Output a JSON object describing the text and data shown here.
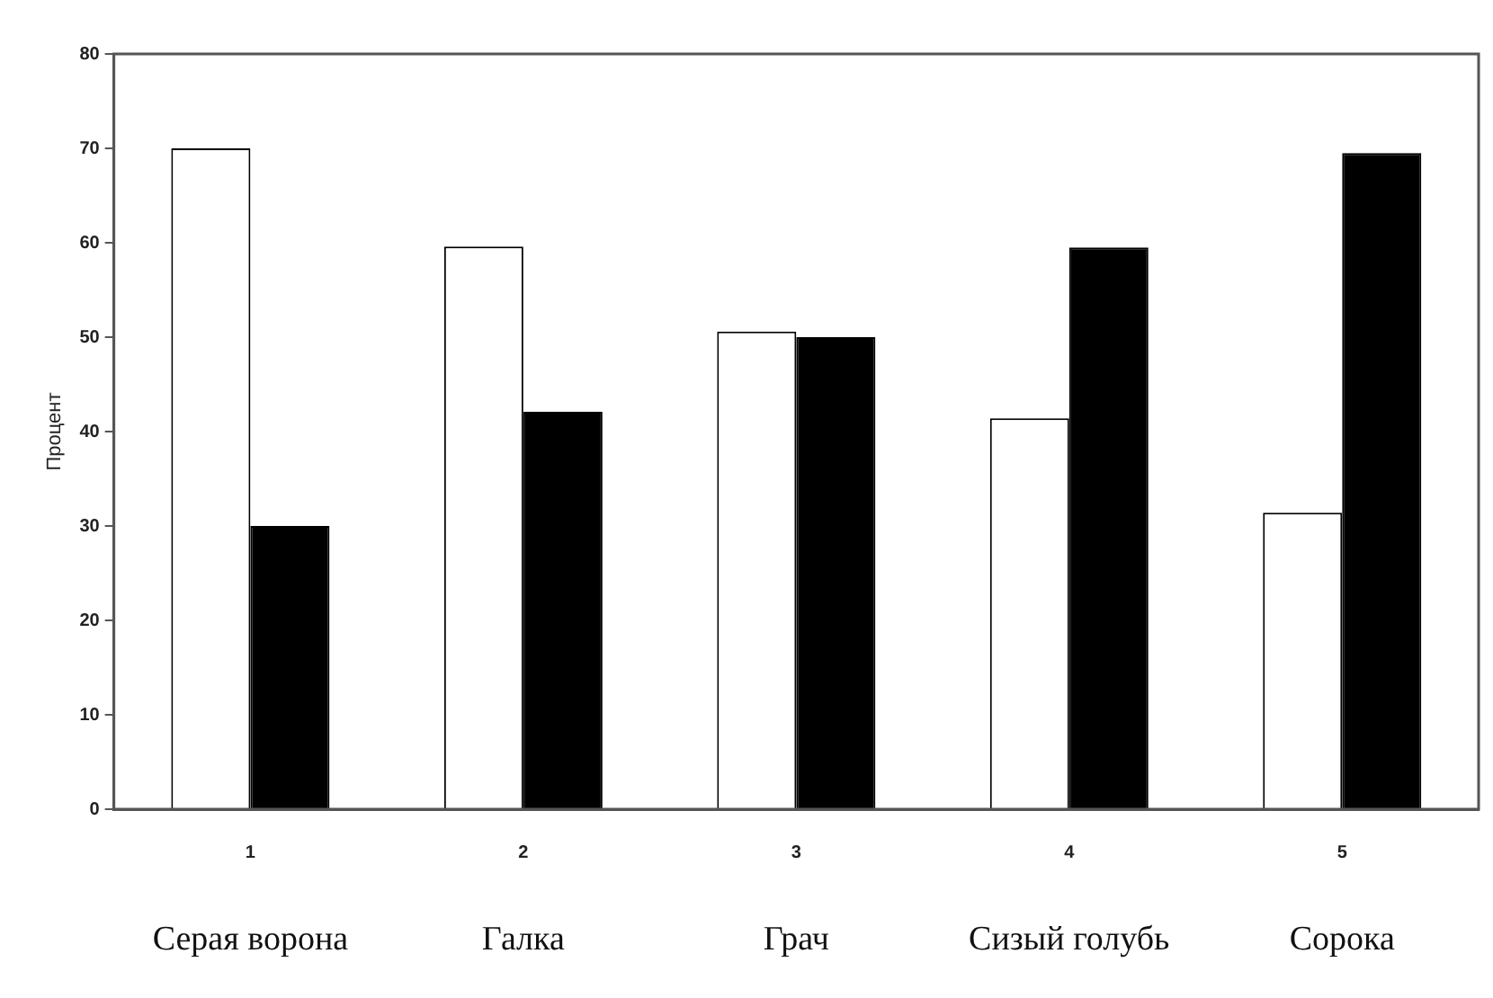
{
  "chart_data": {
    "type": "bar",
    "ylabel": "Процент",
    "categories": [
      "1",
      "2",
      "3",
      "4",
      "5"
    ],
    "series": [
      {
        "color": "#ffffff",
        "values": [
          70,
          59.6,
          50.6,
          41.4,
          31.4
        ]
      },
      {
        "color": "#000000",
        "values": [
          30,
          42.1,
          50,
          59.5,
          69.5
        ]
      }
    ],
    "ylim": [
      0,
      80
    ],
    "yticks": [
      0,
      10,
      20,
      30,
      40,
      50,
      60,
      70,
      80
    ],
    "grid": false,
    "legend": false,
    "annotations": [
      "Серая ворона",
      "Галка",
      "Грач",
      "Сизый голубь",
      "Сорока"
    ]
  }
}
